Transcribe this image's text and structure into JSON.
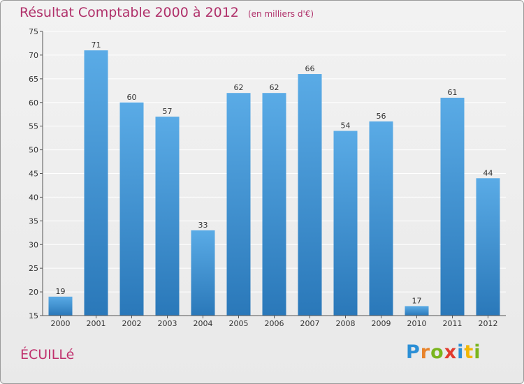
{
  "title": "Résultat Comptable 2000 à 2012",
  "subtitle": "(en milliers d'€)",
  "commune": "ÉCUILLé",
  "logo": {
    "text": "Proxiti",
    "letters": [
      {
        "char": "P",
        "color": "#2b8fd6"
      },
      {
        "char": "r",
        "color": "#e8832a"
      },
      {
        "char": "o",
        "color": "#7ab51d"
      },
      {
        "char": "x",
        "color": "#e23b2e"
      },
      {
        "char": "i",
        "color": "#2b8fd6"
      },
      {
        "char": "t",
        "color": "#f2b705"
      },
      {
        "char": "i",
        "color": "#7ab51d"
      }
    ]
  },
  "colors": {
    "bar_top": "#5aabe6",
    "bar_bottom": "#2a78b9",
    "axis": "#555555",
    "grid": "#ffffff",
    "text": "#333333"
  },
  "chart_data": {
    "type": "bar",
    "title": "Résultat Comptable 2000 à 2012",
    "xlabel": "",
    "ylabel": "",
    "unit": "en milliers d'€",
    "ylim": [
      15,
      75
    ],
    "yticks": [
      15,
      20,
      25,
      30,
      35,
      40,
      45,
      50,
      55,
      60,
      65,
      70,
      75
    ],
    "grid": true,
    "categories": [
      "2000",
      "2001",
      "2002",
      "2003",
      "2004",
      "2005",
      "2006",
      "2007",
      "2008",
      "2009",
      "2010",
      "2011",
      "2012"
    ],
    "values": [
      19,
      71,
      60,
      57,
      33,
      62,
      62,
      66,
      54,
      56,
      17,
      61,
      44
    ]
  }
}
